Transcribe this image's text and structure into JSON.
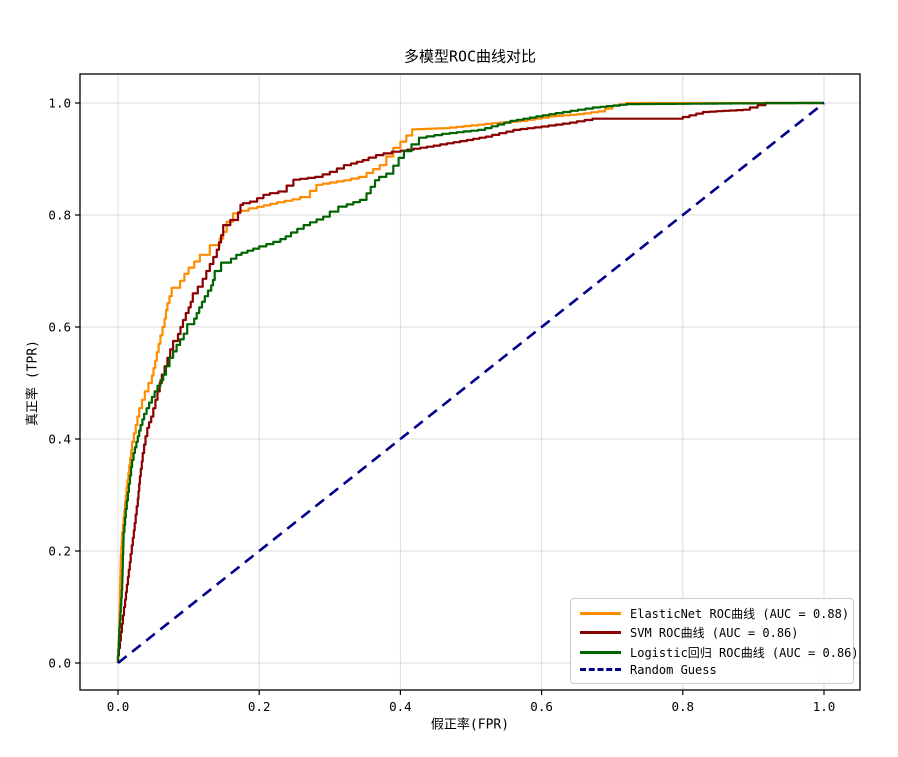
{
  "chart_data": {
    "type": "line",
    "title": "多模型ROC曲线对比",
    "xlabel": "假正率(FPR)",
    "ylabel": "真正率 (TPR)",
    "xlim": [
      0.0,
      1.0
    ],
    "ylim": [
      0.0,
      1.0
    ],
    "xticks": [
      "0.0",
      "0.2",
      "0.4",
      "0.6",
      "0.8",
      "1.0"
    ],
    "yticks": [
      "0.0",
      "0.2",
      "0.4",
      "0.6",
      "0.8",
      "1.0"
    ],
    "grid": true,
    "grid_color": "#dcdcdc",
    "axis_color": "#000000",
    "background_color": "#ffffff",
    "legend_position": "lower right",
    "series": [
      {
        "id": "elasticnet",
        "name": "ElasticNet ROC曲线 (AUC = 0.88)",
        "auc": 0.88,
        "color": "#ff8c00",
        "line_style": "solid",
        "points": [
          [
            0,
            0
          ],
          [
            0.002,
            0.06
          ],
          [
            0.003,
            0.13
          ],
          [
            0.004,
            0.18
          ],
          [
            0.006,
            0.22
          ],
          [
            0.009,
            0.26
          ],
          [
            0.012,
            0.3
          ],
          [
            0.016,
            0.34
          ],
          [
            0.02,
            0.38
          ],
          [
            0.025,
            0.41
          ],
          [
            0.03,
            0.44
          ],
          [
            0.038,
            0.47
          ],
          [
            0.048,
            0.5
          ],
          [
            0.055,
            0.54
          ],
          [
            0.06,
            0.57
          ],
          [
            0.066,
            0.6
          ],
          [
            0.07,
            0.63
          ],
          [
            0.076,
            0.655
          ],
          [
            0.088,
            0.67
          ],
          [
            0.1,
            0.695
          ],
          [
            0.116,
            0.717
          ],
          [
            0.13,
            0.729
          ],
          [
            0.144,
            0.746
          ],
          [
            0.154,
            0.77
          ],
          [
            0.163,
            0.788
          ],
          [
            0.173,
            0.803
          ],
          [
            0.197,
            0.812
          ],
          [
            0.225,
            0.82
          ],
          [
            0.258,
            0.828
          ],
          [
            0.272,
            0.832
          ],
          [
            0.29,
            0.854
          ],
          [
            0.33,
            0.862
          ],
          [
            0.352,
            0.868
          ],
          [
            0.38,
            0.889
          ],
          [
            0.4,
            0.92
          ],
          [
            0.425,
            0.953
          ],
          [
            0.47,
            0.955
          ],
          [
            0.51,
            0.96
          ],
          [
            0.54,
            0.964
          ],
          [
            0.58,
            0.968
          ],
          [
            0.62,
            0.976
          ],
          [
            0.66,
            0.98
          ],
          [
            0.69,
            0.985
          ],
          [
            0.71,
            0.995
          ],
          [
            0.73,
            1.0
          ],
          [
            1.0,
            1.0
          ]
        ]
      },
      {
        "id": "svm",
        "name": "SVM ROC曲线 (AUC = 0.86)",
        "auc": 0.86,
        "color": "#8b0000",
        "line_style": "solid",
        "points": [
          [
            0,
            0
          ],
          [
            0.004,
            0.04
          ],
          [
            0.007,
            0.07
          ],
          [
            0.01,
            0.1
          ],
          [
            0.014,
            0.14
          ],
          [
            0.018,
            0.18
          ],
          [
            0.021,
            0.21
          ],
          [
            0.025,
            0.25
          ],
          [
            0.028,
            0.28
          ],
          [
            0.031,
            0.32
          ],
          [
            0.035,
            0.36
          ],
          [
            0.039,
            0.39
          ],
          [
            0.044,
            0.42
          ],
          [
            0.05,
            0.44
          ],
          [
            0.056,
            0.47
          ],
          [
            0.062,
            0.5
          ],
          [
            0.07,
            0.53
          ],
          [
            0.078,
            0.56
          ],
          [
            0.085,
            0.575
          ],
          [
            0.092,
            0.6
          ],
          [
            0.1,
            0.625
          ],
          [
            0.106,
            0.645
          ],
          [
            0.113,
            0.66
          ],
          [
            0.12,
            0.672
          ],
          [
            0.13,
            0.7
          ],
          [
            0.14,
            0.725
          ],
          [
            0.149,
            0.764
          ],
          [
            0.159,
            0.782
          ],
          [
            0.17,
            0.791
          ],
          [
            0.177,
            0.818
          ],
          [
            0.197,
            0.824
          ],
          [
            0.215,
            0.836
          ],
          [
            0.239,
            0.842
          ],
          [
            0.258,
            0.863
          ],
          [
            0.29,
            0.868
          ],
          [
            0.31,
            0.877
          ],
          [
            0.33,
            0.889
          ],
          [
            0.355,
            0.898
          ],
          [
            0.376,
            0.907
          ],
          [
            0.4,
            0.913
          ],
          [
            0.447,
            0.922
          ],
          [
            0.494,
            0.932
          ],
          [
            0.53,
            0.94
          ],
          [
            0.57,
            0.952
          ],
          [
            0.61,
            0.958
          ],
          [
            0.65,
            0.965
          ],
          [
            0.683,
            0.972
          ],
          [
            0.8,
            0.972
          ],
          [
            0.838,
            0.984
          ],
          [
            0.895,
            0.988
          ],
          [
            0.928,
            1.0
          ],
          [
            1.0,
            1.0
          ]
        ]
      },
      {
        "id": "logistic",
        "name": "Logistic回归 ROC曲线 (AUC = 0.86)",
        "auc": 0.86,
        "color": "#006400",
        "line_style": "solid",
        "points": [
          [
            0,
            0
          ],
          [
            0.002,
            0.05
          ],
          [
            0.004,
            0.09
          ],
          [
            0.006,
            0.13
          ],
          [
            0.007,
            0.18
          ],
          [
            0.008,
            0.22
          ],
          [
            0.011,
            0.26
          ],
          [
            0.014,
            0.29
          ],
          [
            0.017,
            0.32
          ],
          [
            0.02,
            0.35
          ],
          [
            0.024,
            0.375
          ],
          [
            0.028,
            0.395
          ],
          [
            0.032,
            0.415
          ],
          [
            0.037,
            0.435
          ],
          [
            0.044,
            0.455
          ],
          [
            0.052,
            0.475
          ],
          [
            0.06,
            0.495
          ],
          [
            0.068,
            0.515
          ],
          [
            0.078,
            0.545
          ],
          [
            0.088,
            0.568
          ],
          [
            0.098,
            0.588
          ],
          [
            0.108,
            0.605
          ],
          [
            0.115,
            0.625
          ],
          [
            0.123,
            0.645
          ],
          [
            0.132,
            0.665
          ],
          [
            0.137,
            0.684
          ],
          [
            0.146,
            0.7
          ],
          [
            0.16,
            0.715
          ],
          [
            0.175,
            0.729
          ],
          [
            0.2,
            0.74
          ],
          [
            0.23,
            0.752
          ],
          [
            0.245,
            0.762
          ],
          [
            0.272,
            0.782
          ],
          [
            0.3,
            0.797
          ],
          [
            0.324,
            0.815
          ],
          [
            0.352,
            0.827
          ],
          [
            0.37,
            0.862
          ],
          [
            0.39,
            0.874
          ],
          [
            0.405,
            0.902
          ],
          [
            0.437,
            0.938
          ],
          [
            0.47,
            0.945
          ],
          [
            0.52,
            0.952
          ],
          [
            0.565,
            0.968
          ],
          [
            0.62,
            0.98
          ],
          [
            0.683,
            0.992
          ],
          [
            0.73,
            0.998
          ],
          [
            0.98,
            1.0
          ],
          [
            1.0,
            1.0
          ]
        ]
      },
      {
        "id": "random-guess",
        "name": "Random Guess",
        "color": "#00008b",
        "line_style": "dashed",
        "points": [
          [
            0,
            0
          ],
          [
            1,
            1
          ]
        ]
      }
    ]
  }
}
